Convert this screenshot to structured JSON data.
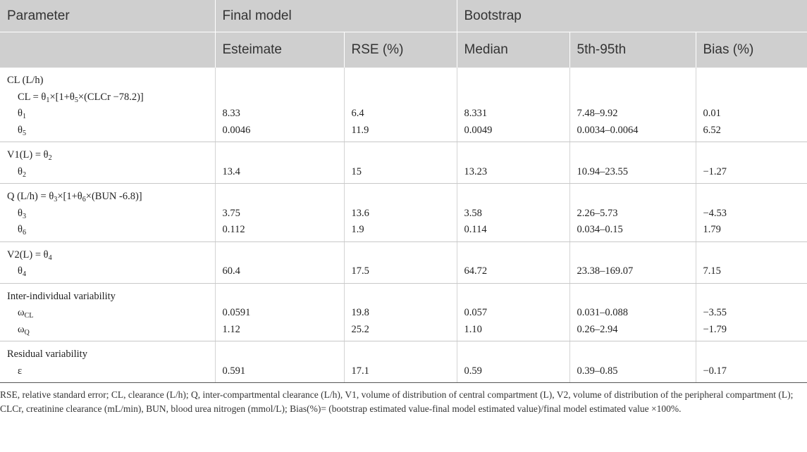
{
  "header": {
    "parameter": "Parameter",
    "final_model": "Final model",
    "bootstrap": "Bootstrap",
    "estimate": "Esteimate",
    "rse": "RSE (%)",
    "median": "Median",
    "percentile": "5th-95th",
    "bias": "Bias (%)"
  },
  "groups": [
    {
      "rows": [
        {
          "param": [
            "CL (L/h)"
          ],
          "cells": [
            "",
            "",
            "",
            "",
            ""
          ]
        },
        {
          "param": [
            "CL = θ",
            "1",
            "×[1+θ",
            "5",
            "×(CLCr −78.2)]"
          ],
          "indent": true,
          "cells": [
            "",
            "",
            "",
            "",
            ""
          ]
        },
        {
          "param": [
            "θ",
            "1"
          ],
          "indent": true,
          "cells": [
            "8.33",
            "6.4",
            "8.331",
            "7.48–9.92",
            "0.01"
          ]
        },
        {
          "param": [
            "θ",
            "5"
          ],
          "indent": true,
          "cells": [
            "0.0046",
            "11.9",
            "0.0049",
            "0.0034–0.0064",
            "6.52"
          ]
        }
      ]
    },
    {
      "rows": [
        {
          "param": [
            "V1(L) = θ",
            "2"
          ],
          "cells": [
            "",
            "",
            "",
            "",
            ""
          ]
        },
        {
          "param": [
            "θ",
            "2"
          ],
          "indent": true,
          "cells": [
            "13.4",
            "15",
            "13.23",
            "10.94–23.55",
            "−1.27"
          ]
        }
      ]
    },
    {
      "rows": [
        {
          "param": [
            "Q (L/h) = θ",
            "3",
            "×[1+θ",
            "6",
            "×(BUN -6.8)]"
          ],
          "cells": [
            "",
            "",
            "",
            "",
            ""
          ]
        },
        {
          "param": [
            "θ",
            "3"
          ],
          "indent": true,
          "cells": [
            "3.75",
            "13.6",
            "3.58",
            "2.26–5.73",
            "−4.53"
          ]
        },
        {
          "param": [
            "θ",
            "6"
          ],
          "indent": true,
          "cells": [
            "0.112",
            "1.9",
            "0.114",
            "0.034–0.15",
            "1.79"
          ]
        }
      ]
    },
    {
      "rows": [
        {
          "param": [
            "V2(L) = θ",
            "4"
          ],
          "cells": [
            "",
            "",
            "",
            "",
            ""
          ]
        },
        {
          "param": [
            "θ",
            "4"
          ],
          "indent": true,
          "cells": [
            "60.4",
            "17.5",
            "64.72",
            "23.38–169.07",
            "7.15"
          ]
        }
      ]
    },
    {
      "rows": [
        {
          "param": [
            "Inter-individual variability"
          ],
          "cells": [
            "",
            "",
            "",
            "",
            ""
          ]
        },
        {
          "param": [
            "ω",
            "CL"
          ],
          "indent": true,
          "cells": [
            "0.0591",
            "19.8",
            "0.057",
            "0.031–0.088",
            "−3.55"
          ]
        },
        {
          "param": [
            "ω",
            "Q"
          ],
          "indent": true,
          "cells": [
            "1.12",
            "25.2",
            "1.10",
            "0.26–2.94",
            "−1.79"
          ]
        }
      ]
    },
    {
      "rows": [
        {
          "param": [
            "Residual variability"
          ],
          "cells": [
            "",
            "",
            "",
            "",
            ""
          ]
        },
        {
          "param": [
            "ε"
          ],
          "indent": true,
          "cells": [
            "0.591",
            "17.1",
            "0.59",
            "0.39–0.85",
            "−0.17"
          ]
        }
      ]
    }
  ],
  "footnote": "RSE, relative standard error; CL, clearance (L/h); Q, inter-compartmental clearance (L/h), V1, volume of distribution of central compartment (L), V2, volume of distribution of the peripheral compartment (L); CLCr, creatinine clearance (mL/min), BUN, blood urea nitrogen (mmol/L); Bias(%)= (bootstrap estimated value-final model estimated value)/final model estimated value ×100%."
}
